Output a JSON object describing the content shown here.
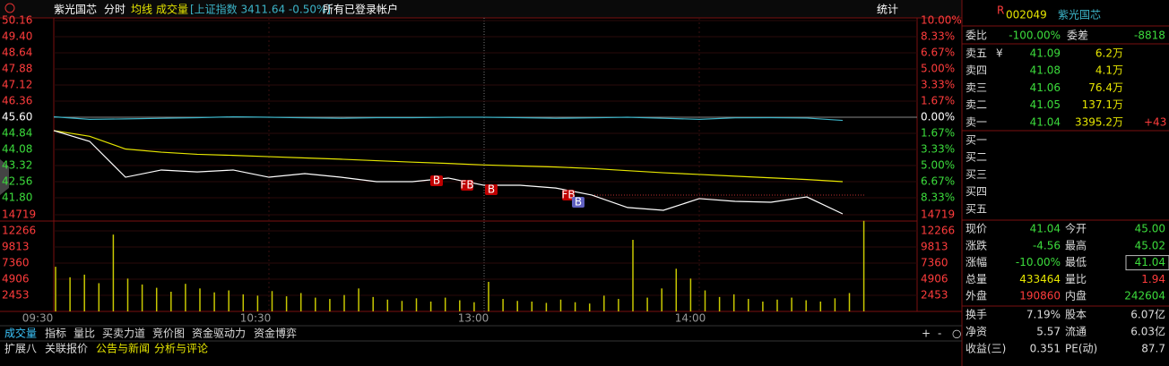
{
  "toolbar": {
    "stock": "紫光国芯",
    "view": "分时",
    "tabs": [
      "均线",
      "成交量"
    ],
    "index": "[上证指数 3411.64 -0.50%]",
    "account": "所有已登录帐户",
    "stats": "统计"
  },
  "chart_data": {
    "type": "line",
    "ylim": [
      41.04,
      50.16
    ],
    "price_ticks": [
      50.16,
      49.4,
      48.64,
      47.88,
      47.12,
      46.36,
      45.6,
      44.84,
      44.08,
      43.32,
      42.56,
      41.8
    ],
    "price_tick_labels": [
      "50.16",
      "49.40",
      "48.64",
      "47.88",
      "47.12",
      "46.36",
      "45.60",
      "44.84",
      "44.08",
      "43.32",
      "42.56",
      "41.80"
    ],
    "pct_ticks": [
      "10.00%",
      "8.33%",
      "6.67%",
      "5.00%",
      "3.33%",
      "1.67%",
      "0.00%",
      "1.67%",
      "3.33%",
      "5.00%",
      "6.67%",
      "8.33%"
    ],
    "series": [
      {
        "name": "价格",
        "color": "#ffffff",
        "values": [
          44.97,
          44.46,
          42.77,
          43.11,
          43.02,
          43.11,
          42.77,
          42.94,
          42.77,
          42.56,
          42.56,
          42.73,
          42.39,
          42.39,
          42.26,
          41.93,
          41.34,
          41.21,
          41.76,
          41.63,
          41.59,
          41.84,
          41.04
        ]
      },
      {
        "name": "均线",
        "color": "#e6e600",
        "values": [
          44.97,
          44.7,
          44.1,
          43.95,
          43.85,
          43.8,
          43.74,
          43.68,
          43.62,
          43.55,
          43.48,
          43.42,
          43.35,
          43.3,
          43.25,
          43.18,
          43.08,
          42.98,
          42.9,
          42.82,
          42.74,
          42.66,
          42.56
        ]
      },
      {
        "name": "上证指数",
        "color": "#3cb4c8",
        "values": [
          45.62,
          45.5,
          45.52,
          45.55,
          45.58,
          45.62,
          45.6,
          45.57,
          45.55,
          45.58,
          45.58,
          45.6,
          45.6,
          45.58,
          45.55,
          45.57,
          45.6,
          45.55,
          45.5,
          45.57,
          45.58,
          45.56,
          45.45
        ]
      }
    ],
    "markers": [
      "B",
      "FB",
      "B",
      "FB",
      "B"
    ],
    "vlim": [
      0,
      14719
    ],
    "volume_ticks": [
      14719,
      12266,
      9813,
      7360,
      4906,
      2453
    ],
    "volume_color": "#c8c800",
    "volumes": [
      6800,
      5200,
      5600,
      4300,
      11700,
      5000,
      4100,
      3600,
      3000,
      4200,
      3500,
      2900,
      3200,
      2600,
      2400,
      3100,
      2300,
      2800,
      2100,
      1900,
      2500,
      3500,
      2200,
      1800,
      1600,
      2000,
      1500,
      2100,
      1700,
      1400,
      4500,
      1900,
      1600,
      1500,
      1300,
      1800,
      1400,
      1200,
      2400,
      1900,
      10900,
      2100,
      3500,
      6500,
      5000,
      3200,
      2200,
      2600,
      1900,
      1500,
      1800,
      2100,
      1700,
      1500,
      2000,
      2800,
      13800
    ],
    "times": [
      "09:30",
      "10:30",
      "13:00",
      "14:00"
    ]
  },
  "bottom_tabs": {
    "row1": [
      "成交量",
      "指标",
      "量比",
      "买卖力道",
      "竞价图",
      "资金驱动力",
      "资金博弈"
    ],
    "controls": [
      "+",
      "-",
      "○"
    ],
    "row2": [
      "扩展八",
      "关联报价",
      "公告与新闻",
      "分析与评论"
    ]
  },
  "quote": {
    "flag": "R",
    "code": "002049",
    "name": "紫光国芯",
    "ratio": [
      "委比",
      "-100.00%",
      "委差",
      "-8818"
    ],
    "asks": [
      {
        "label": "卖五",
        "icon": "¥",
        "price": "41.09",
        "volume": "6.2万"
      },
      {
        "label": "卖四",
        "price": "41.08",
        "volume": "4.1万"
      },
      {
        "label": "卖三",
        "price": "41.06",
        "volume": "76.4万"
      },
      {
        "label": "卖二",
        "price": "41.05",
        "volume": "137.1万"
      },
      {
        "label": "卖一",
        "price": "41.04",
        "volume": "3395.2万",
        "extra": "+43"
      }
    ],
    "bids": [
      "买一",
      "买二",
      "买三",
      "买四",
      "买五"
    ],
    "stats": [
      [
        "现价",
        "41.04",
        "今开",
        "45.00"
      ],
      [
        "涨跌",
        "-4.56",
        "最高",
        "45.02"
      ],
      [
        "涨幅",
        "-10.00%",
        "最低",
        "41.04"
      ],
      [
        "总量",
        "433464",
        "量比",
        "1.94"
      ],
      [
        "外盘",
        "190860",
        "内盘",
        "242604"
      ]
    ],
    "fundamentals": [
      [
        "换手",
        "7.19%",
        "股本",
        "6.07亿"
      ],
      [
        "净资",
        "5.57",
        "流通",
        "6.03亿"
      ],
      [
        "收益(三)",
        "0.351",
        "PE(动)",
        "87.7"
      ]
    ]
  }
}
